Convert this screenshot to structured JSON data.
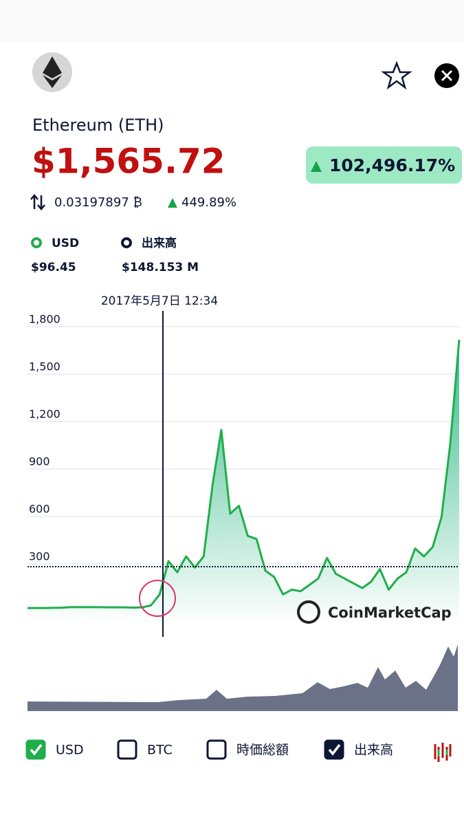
{
  "header": {
    "name": "Ethereum (ETH)",
    "price": "$1,565.72",
    "change": "102,496.17%",
    "btc_price": "0.03197897 ₿",
    "btc_change": "449.89%"
  },
  "legend": [
    {
      "name": "USD",
      "value": "$96.45"
    },
    {
      "name": "出来高",
      "value": "$148.153 M"
    }
  ],
  "tooltip": {
    "date": "2017年5月7日 12:34"
  },
  "chart_data": {
    "type": "area",
    "series": [
      {
        "color": "#1fae4b",
        "values": [
          4,
          4,
          4,
          5,
          6,
          10,
          9,
          9,
          9,
          8,
          8,
          8,
          6,
          8,
          20,
          90,
          300,
          230,
          330,
          260,
          330,
          780,
          1130,
          600,
          650,
          460,
          440,
          240,
          200,
          90,
          120,
          110,
          150,
          190,
          320,
          220,
          190,
          160,
          130,
          170,
          250,
          120,
          190,
          230,
          380,
          330,
          390,
          580,
          1050,
          1700
        ]
      }
    ],
    "ylim": [
      -100,
      1900
    ],
    "yticks": [
      {
        "value": 1800,
        "label": "1,800"
      },
      {
        "value": 1500,
        "label": "1,500"
      },
      {
        "value": 1200,
        "label": "1,200"
      },
      900,
      600,
      300
    ],
    "grid": true,
    "reference": 265
  },
  "watermark": "CoinMarketCap",
  "toggles": [
    {
      "label": "USD",
      "checked": true,
      "color": "#1fae4b"
    },
    {
      "label": "BTC",
      "checked": false,
      "color": "#0d1633"
    },
    {
      "label": "時価総額",
      "checked": false,
      "color": "#0d1633"
    },
    {
      "label": "出来高",
      "checked": true,
      "color": "#0d1633"
    }
  ]
}
